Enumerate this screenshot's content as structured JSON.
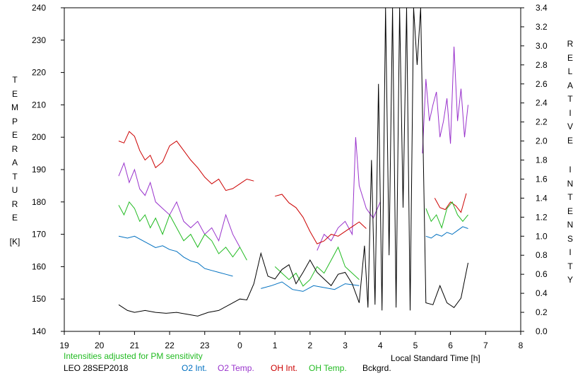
{
  "chart_data": {
    "type": "line",
    "station": "LEO 28SEP2018",
    "note": "Intensities adjusted for PM sensitivity",
    "xlabel": "Local Standard Time [h]",
    "x_ticks": [
      "19",
      "20",
      "21",
      "22",
      "23",
      "0",
      "1",
      "2",
      "3",
      "4",
      "5",
      "6",
      "7",
      "8"
    ],
    "xlim": [
      19,
      32
    ],
    "ylabel_left": "TEMPERATURE [K]",
    "ylabel_left_main": "TEMPERATURE",
    "ylabel_left_unit": "[K]",
    "ylim_left": [
      140,
      240
    ],
    "y_ticks_left": [
      "140",
      "150",
      "160",
      "170",
      "180",
      "190",
      "200",
      "210",
      "220",
      "230",
      "240"
    ],
    "ylabel_right": "RELATIVE INTENSITY",
    "ylabel_right_word1": "RELATIVE",
    "ylabel_right_word2": "INTENSITY",
    "ylim_right": [
      0.0,
      3.4
    ],
    "y_ticks_right": [
      "0.0",
      "0.2",
      "0.4",
      "0.6",
      "0.8",
      "1.0",
      "1.2",
      "1.4",
      "1.6",
      "1.8",
      "2.0",
      "2.2",
      "2.4",
      "2.6",
      "2.8",
      "3.0",
      "3.2",
      "3.4"
    ],
    "grid": false,
    "legend_position": "bottom",
    "series": [
      {
        "name": "O2 Int.",
        "axis": "right",
        "color": "#0070c0",
        "x": [
          20.55,
          20.8,
          21.0,
          21.2,
          21.4,
          21.6,
          21.8,
          22.0,
          22.2,
          22.4,
          22.6,
          22.8,
          23.0,
          23.2,
          23.4,
          23.6,
          23.8,
          null,
          24.6,
          24.9,
          25.2,
          25.5,
          25.8,
          26.1,
          26.4,
          26.7,
          27.0,
          27.4,
          null,
          29.3,
          29.45,
          29.6,
          29.75,
          29.9,
          30.05,
          30.2,
          30.35,
          30.5
        ],
        "y": [
          1.0,
          0.98,
          1.0,
          0.96,
          0.92,
          0.88,
          0.9,
          0.86,
          0.84,
          0.78,
          0.74,
          0.72,
          0.66,
          0.64,
          0.62,
          0.6,
          0.58,
          null,
          0.45,
          0.48,
          0.52,
          0.44,
          0.42,
          0.48,
          0.46,
          0.44,
          0.5,
          0.48,
          null,
          1.0,
          0.98,
          1.02,
          1.0,
          1.04,
          1.02,
          1.06,
          1.1,
          1.08
        ]
      },
      {
        "name": "O2 Temp.",
        "axis": "left",
        "color": "#9933cc",
        "x": [
          20.55,
          20.7,
          20.85,
          21.0,
          21.15,
          21.3,
          21.45,
          21.6,
          21.8,
          22.0,
          22.2,
          22.4,
          22.6,
          22.8,
          23.0,
          23.2,
          23.4,
          23.6,
          23.8,
          24.0,
          null,
          26.2,
          26.4,
          26.6,
          26.8,
          27.0,
          27.2,
          27.3,
          27.4,
          27.6,
          27.8,
          28.0,
          null,
          29.2,
          29.3,
          29.4,
          29.5,
          29.6,
          29.7,
          29.8,
          29.9,
          30.0,
          30.1,
          30.2,
          30.3,
          30.4,
          30.5
        ],
        "y": [
          188,
          192,
          186,
          190,
          184,
          182,
          186,
          180,
          178,
          176,
          180,
          174,
          172,
          174,
          170,
          172,
          168,
          176,
          170,
          166,
          null,
          165,
          170,
          168,
          172,
          174,
          170,
          200,
          185,
          178,
          175,
          180,
          null,
          195,
          218,
          205,
          210,
          214,
          200,
          205,
          212,
          198,
          228,
          205,
          215,
          200,
          210
        ]
      },
      {
        "name": "OH Int.",
        "axis": "right",
        "color": "#cc0000",
        "x": [
          20.55,
          20.7,
          20.85,
          21.0,
          21.15,
          21.3,
          21.45,
          21.6,
          21.8,
          22.0,
          22.2,
          22.4,
          22.6,
          22.8,
          23.0,
          23.2,
          23.4,
          23.6,
          23.8,
          24.0,
          24.2,
          24.4,
          null,
          25.0,
          25.2,
          25.4,
          25.6,
          25.8,
          26.0,
          26.2,
          26.4,
          26.6,
          26.8,
          27.0,
          27.2,
          27.4,
          27.6,
          null,
          29.55,
          29.7,
          29.85,
          30.0,
          30.15,
          30.3,
          30.45
        ],
        "y": [
          2.0,
          1.98,
          2.1,
          2.05,
          1.9,
          1.8,
          1.85,
          1.72,
          1.78,
          1.95,
          2.0,
          1.9,
          1.8,
          1.72,
          1.62,
          1.55,
          1.6,
          1.48,
          1.5,
          1.55,
          1.6,
          1.58,
          null,
          1.42,
          1.44,
          1.35,
          1.3,
          1.2,
          1.05,
          0.92,
          0.95,
          1.02,
          1.0,
          1.05,
          1.1,
          1.15,
          1.08,
          null,
          1.4,
          1.3,
          1.28,
          1.36,
          1.32,
          1.25,
          1.45
        ]
      },
      {
        "name": "OH Temp.",
        "axis": "left",
        "color": "#22bb22",
        "x": [
          20.55,
          20.7,
          20.85,
          21.0,
          21.15,
          21.3,
          21.45,
          21.6,
          21.8,
          22.0,
          22.2,
          22.4,
          22.6,
          22.8,
          23.0,
          23.2,
          23.4,
          23.6,
          23.8,
          24.0,
          24.2,
          null,
          25.0,
          25.2,
          25.4,
          25.6,
          25.8,
          26.0,
          26.2,
          26.4,
          26.6,
          26.8,
          27.0,
          27.2,
          27.4,
          null,
          29.3,
          29.45,
          29.6,
          29.75,
          29.9,
          30.05,
          30.2,
          30.35,
          30.5
        ],
        "y": [
          179,
          176,
          180,
          178,
          174,
          176,
          172,
          175,
          170,
          176,
          172,
          168,
          170,
          166,
          170,
          168,
          164,
          166,
          163,
          166,
          162,
          null,
          160,
          158,
          156,
          158,
          154,
          156,
          160,
          158,
          162,
          166,
          160,
          158,
          156,
          null,
          178,
          174,
          176,
          172,
          178,
          180,
          176,
          174,
          176
        ]
      },
      {
        "name": "Bckgrd.",
        "axis": "right",
        "color": "#000000",
        "x": [
          20.55,
          20.8,
          21.0,
          21.3,
          21.6,
          21.9,
          22.2,
          22.5,
          22.8,
          23.1,
          23.4,
          23.7,
          24.0,
          24.2,
          24.4,
          24.6,
          24.8,
          25.0,
          25.2,
          25.4,
          25.6,
          25.8,
          26.0,
          26.2,
          26.4,
          26.6,
          26.8,
          27.0,
          27.2,
          27.4,
          27.55,
          27.65,
          27.75,
          27.85,
          27.95,
          28.05,
          28.15,
          28.25,
          28.35,
          28.45,
          28.55,
          28.65,
          28.75,
          28.85,
          28.95,
          29.05,
          29.15,
          29.3,
          29.5,
          29.7,
          29.9,
          30.1,
          30.3,
          30.5
        ],
        "y": [
          0.28,
          0.22,
          0.2,
          0.22,
          0.2,
          0.19,
          0.2,
          0.18,
          0.16,
          0.2,
          0.22,
          0.28,
          0.34,
          0.33,
          0.5,
          0.82,
          0.58,
          0.55,
          0.65,
          0.7,
          0.5,
          0.62,
          0.75,
          0.62,
          0.55,
          0.48,
          0.6,
          0.62,
          0.5,
          0.3,
          0.9,
          0.25,
          1.8,
          0.28,
          2.6,
          0.22,
          3.4,
          0.8,
          3.4,
          0.25,
          3.4,
          1.3,
          3.4,
          0.22,
          3.4,
          2.8,
          3.4,
          0.3,
          0.28,
          0.48,
          0.3,
          0.25,
          0.35,
          0.72
        ]
      }
    ]
  }
}
